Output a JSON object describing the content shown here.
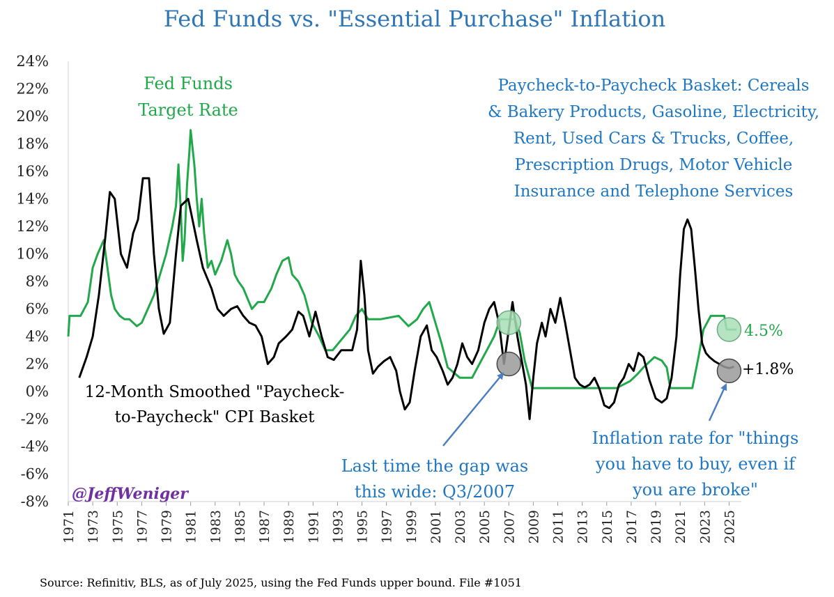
{
  "colors": {
    "title": "#2e75b6",
    "fed": "#20a84a",
    "basket": "#000000",
    "annot_blue": "#1f77c4",
    "handle": "#7030a0",
    "marker_green": "#a9dfb8",
    "marker_gray": "#9a9a9a"
  },
  "chart_data": {
    "type": "line",
    "title": "Fed Funds vs. \"Essential Purchase\" Inflation",
    "ylim": [
      -8,
      24
    ],
    "xlim": [
      1971,
      2026
    ],
    "y_ticks": [
      -8,
      -6,
      -4,
      -2,
      0,
      2,
      4,
      6,
      8,
      10,
      12,
      14,
      16,
      18,
      20,
      22,
      24
    ],
    "y_tick_labels": [
      "-8%",
      "-6%",
      "-4%",
      "-2%",
      "0%",
      "2%",
      "4%",
      "6%",
      "8%",
      "10%",
      "12%",
      "14%",
      "16%",
      "18%",
      "20%",
      "22%",
      "24%"
    ],
    "x_ticks": [
      1971,
      1973,
      1975,
      1977,
      1979,
      1981,
      1983,
      1985,
      1987,
      1989,
      1991,
      1993,
      1995,
      1997,
      1999,
      2001,
      2003,
      2005,
      2007,
      2009,
      2011,
      2013,
      2015,
      2017,
      2019,
      2021,
      2023,
      2025
    ],
    "x_tick_labels": [
      "1971",
      "1973",
      "1975",
      "1977",
      "1979",
      "1981",
      "1983",
      "1985",
      "1987",
      "1989",
      "1991",
      "1993",
      "1995",
      "1997",
      "1999",
      "2001",
      "2003",
      "2005",
      "2007",
      "2009",
      "2011",
      "2013",
      "2015",
      "2017",
      "2019",
      "2021",
      "2023",
      "2025"
    ],
    "series": [
      {
        "name": "Fed Funds Target Rate",
        "x": [
          1971.0,
          1971.1,
          1971.3,
          1972.0,
          1972.6,
          1973.0,
          1973.4,
          1973.9,
          1974.2,
          1974.5,
          1974.8,
          1975.2,
          1975.6,
          1976.0,
          1976.6,
          1977.0,
          1977.5,
          1978.0,
          1978.5,
          1979.0,
          1979.5,
          1979.8,
          1980.0,
          1980.2,
          1980.35,
          1980.5,
          1980.7,
          1980.9,
          1981.0,
          1981.3,
          1981.5,
          1981.7,
          1981.9,
          1982.1,
          1982.4,
          1982.7,
          1983.0,
          1983.5,
          1984.0,
          1984.3,
          1984.6,
          1984.9,
          1985.3,
          1986.0,
          1986.5,
          1987.0,
          1987.6,
          1988.0,
          1988.5,
          1989.0,
          1989.3,
          1989.8,
          1990.3,
          1990.9,
          1991.5,
          1992.0,
          1992.6,
          1994.0,
          1994.5,
          1995.0,
          1995.5,
          1996.5,
          1998.0,
          1998.8,
          1999.5,
          2000.0,
          2000.5,
          2001.0,
          2001.5,
          2002.0,
          2003.0,
          2004.0,
          2004.6,
          2005.2,
          2005.8,
          2006.3,
          2007.5,
          2007.9,
          2008.3,
          2008.9,
          2015.8,
          2016.9,
          2017.5,
          2018.0,
          2018.9,
          2019.5,
          2019.9,
          2020.2,
          2022.0,
          2022.5,
          2022.9,
          2023.5,
          2024.6,
          2024.8,
          2025.6
        ],
        "values": [
          4.0,
          5.5,
          5.5,
          5.5,
          6.5,
          9.0,
          10.0,
          11.0,
          9.0,
          7.0,
          6.0,
          5.5,
          5.25,
          5.25,
          4.75,
          5.0,
          6.0,
          7.0,
          8.5,
          10.0,
          12.0,
          13.5,
          16.5,
          13.0,
          9.5,
          11.0,
          15.0,
          17.5,
          19.0,
          16.5,
          14.0,
          12.0,
          14.0,
          11.5,
          9.0,
          9.5,
          8.5,
          9.5,
          11.0,
          10.0,
          8.5,
          8.0,
          7.5,
          6.0,
          6.5,
          6.5,
          7.5,
          8.5,
          9.5,
          9.75,
          8.5,
          8.0,
          7.0,
          5.0,
          4.0,
          3.0,
          3.0,
          4.5,
          5.5,
          6.0,
          5.25,
          5.25,
          5.5,
          4.75,
          5.25,
          6.0,
          6.5,
          5.0,
          3.5,
          1.75,
          1.0,
          1.0,
          2.0,
          3.0,
          4.0,
          5.25,
          5.25,
          4.25,
          2.25,
          0.25,
          0.25,
          0.75,
          1.25,
          1.75,
          2.5,
          2.25,
          1.75,
          0.25,
          0.25,
          2.5,
          4.5,
          5.5,
          5.5,
          4.5,
          4.5
        ]
      },
      {
        "name": "12-Month Smoothed \"Paycheck-to-Paycheck\" CPI Basket",
        "x": [
          1971.9,
          1972.5,
          1973.0,
          1973.5,
          1974.0,
          1974.4,
          1974.8,
          1975.3,
          1975.8,
          1976.3,
          1976.7,
          1977.1,
          1977.6,
          1978.0,
          1978.4,
          1978.8,
          1979.3,
          1979.8,
          1980.2,
          1980.8,
          1981.5,
          1982.0,
          1982.7,
          1983.2,
          1983.7,
          1984.3,
          1984.8,
          1985.3,
          1985.8,
          1986.3,
          1986.8,
          1987.3,
          1987.8,
          1988.2,
          1988.8,
          1989.3,
          1989.8,
          1990.2,
          1990.7,
          1991.2,
          1991.7,
          1992.2,
          1992.7,
          1993.3,
          1993.8,
          1994.2,
          1994.6,
          1994.9,
          1995.2,
          1995.5,
          1995.9,
          1996.3,
          1996.8,
          1997.3,
          1997.8,
          1998.1,
          1998.5,
          1998.9,
          1999.3,
          1999.8,
          2000.3,
          2000.7,
          2001.1,
          2001.6,
          2002.0,
          2002.4,
          2002.8,
          2003.2,
          2003.6,
          2004.0,
          2004.5,
          2005.0,
          2005.4,
          2005.8,
          2006.2,
          2006.6,
          2007.0,
          2007.3,
          2007.7,
          2008.0,
          2008.4,
          2008.7,
          2009.0,
          2009.3,
          2009.7,
          2010.0,
          2010.4,
          2010.8,
          2011.2,
          2011.6,
          2012.0,
          2012.4,
          2012.8,
          2013.2,
          2013.6,
          2014.0,
          2014.4,
          2014.8,
          2015.2,
          2015.6,
          2016.0,
          2016.4,
          2016.8,
          2017.2,
          2017.6,
          2018.0,
          2018.5,
          2019.0,
          2019.5,
          2019.9,
          2020.3,
          2020.7,
          2021.0,
          2021.3,
          2021.6,
          2021.9,
          2022.2,
          2022.5,
          2022.8,
          2023.1,
          2023.4,
          2023.8,
          2024.2,
          2024.6,
          2025.0,
          2025.4
        ],
        "values": [
          1.0,
          2.5,
          4.0,
          7.0,
          11.0,
          14.5,
          14.0,
          10.0,
          9.0,
          11.5,
          12.5,
          15.5,
          15.5,
          10.0,
          6.0,
          4.2,
          5.0,
          10.0,
          13.5,
          14.0,
          11.0,
          9.0,
          7.5,
          6.0,
          5.5,
          6.0,
          6.2,
          5.5,
          5.0,
          4.8,
          4.0,
          2.0,
          2.5,
          3.5,
          4.0,
          4.5,
          5.8,
          5.5,
          4.0,
          5.8,
          4.0,
          2.5,
          2.3,
          3.0,
          3.0,
          3.0,
          4.5,
          9.5,
          7.0,
          3.0,
          1.3,
          1.8,
          2.2,
          2.5,
          1.5,
          0.0,
          -1.3,
          -0.8,
          1.5,
          4.0,
          4.8,
          3.0,
          2.5,
          1.5,
          0.5,
          1.0,
          2.0,
          3.5,
          2.5,
          2.0,
          3.0,
          5.0,
          6.0,
          6.5,
          5.0,
          2.0,
          4.5,
          6.5,
          4.0,
          2.5,
          0.5,
          -2.0,
          1.0,
          3.5,
          5.0,
          4.0,
          6.0,
          5.0,
          6.8,
          5.0,
          3.0,
          1.0,
          0.5,
          0.3,
          0.5,
          1.0,
          0.2,
          -1.0,
          -1.2,
          -0.8,
          0.5,
          1.0,
          2.0,
          1.5,
          2.8,
          2.5,
          0.8,
          -0.5,
          -0.8,
          -0.5,
          1.0,
          4.0,
          8.5,
          11.8,
          12.5,
          11.8,
          9.0,
          6.0,
          3.5,
          2.8,
          2.5,
          2.2,
          2.0,
          1.8,
          1.7,
          1.8
        ]
      }
    ],
    "markers": [
      {
        "x": 2007.0,
        "y": 5.0,
        "fill": "green"
      },
      {
        "x": 2007.0,
        "y": 2.0,
        "fill": "gray"
      },
      {
        "x": 2025.0,
        "y": 4.5,
        "fill": "green"
      },
      {
        "x": 2025.0,
        "y": 1.5,
        "fill": "gray"
      }
    ],
    "annotations": [
      {
        "key": "fed_label",
        "lines": [
          "Fed Funds",
          "Target Rate"
        ]
      },
      {
        "key": "basket_label",
        "lines": [
          "12-Month Smoothed \"Paycheck-",
          "to-Paycheck\" CPI Basket"
        ]
      },
      {
        "key": "basket_desc",
        "lines": [
          "Paycheck-to-Paycheck Basket: Cereals",
          "& Bakery Products, Gasoline, Electricity,",
          "Rent, Used Cars & Trucks, Coffee,",
          "Prescription Drugs, Motor Vehicle",
          "Insurance and Telephone Services"
        ]
      },
      {
        "key": "gap_note",
        "lines": [
          "Last time the gap was",
          "this wide: Q3/2007"
        ]
      },
      {
        "key": "inflation_note",
        "lines": [
          "Inflation rate for \"things",
          "you have to buy, even if",
          "you are broke\""
        ]
      }
    ],
    "value_labels": {
      "fed_latest": "4.5%",
      "basket_latest": "+1.8%"
    },
    "handle": "@JeffWeniger",
    "source": "Source: Refinitiv, BLS, as of July 2025, using the Fed Funds upper bound. File #1051"
  }
}
